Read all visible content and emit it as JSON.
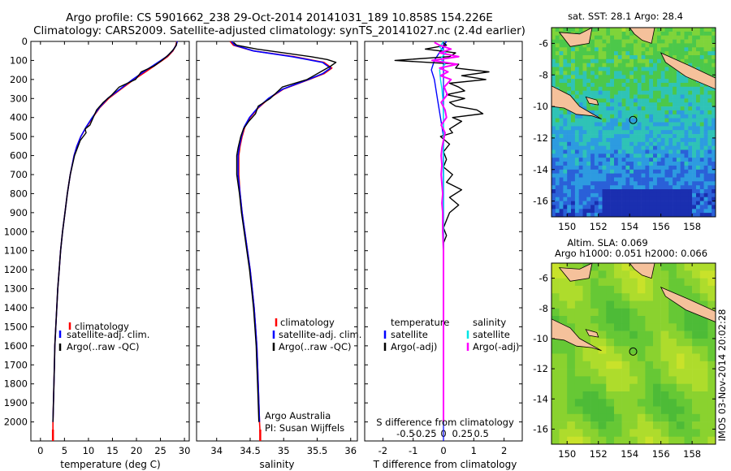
{
  "header": {
    "title_line1": "Argo profile: CS 5901662_238 29-Oct-2014 20141031_189 10.858S 154.226E",
    "title_line2": "Climatology: CARS2009. Satellite-adjusted climatology: synTS_20141027.nc (2.4d earlier)"
  },
  "colors": {
    "climatology": "#ff0000",
    "satellite": "#0000ff",
    "argo": "#000000",
    "sal_satellite": "#00e5e5",
    "sal_argo": "#ff00ff",
    "land": "#f5c19b"
  },
  "depth_axis": {
    "ylim": [
      0,
      2100
    ],
    "ticks": [
      0,
      100,
      200,
      300,
      400,
      500,
      600,
      700,
      800,
      900,
      1000,
      1100,
      1200,
      1300,
      1400,
      1500,
      1600,
      1700,
      1800,
      1900,
      2000
    ]
  },
  "panel_labels": {
    "temperature_xlabel": "temperature (deg C)",
    "salinity_xlabel": "salinity",
    "diff_xlabel": "T difference from climatology",
    "diff_sub_label": "S difference from climatology"
  },
  "legends": {
    "profile": [
      "climatology",
      "satellite-adj. clim.",
      "Argo(..raw -QC)"
    ],
    "diff_temp_header": "temperature",
    "diff_sal_header": "salinity",
    "diff_temp": [
      "satellite",
      "Argo(-adj)"
    ],
    "diff_sal": [
      "satellite",
      "Argo(-adj)"
    ]
  },
  "credits": {
    "line1": "Argo Australia",
    "line2": "PI: Susan Wijffels"
  },
  "maps": {
    "sst_title": "sat. SST: 28.1  Argo: 28.4",
    "sla_title1": "Altim. SLA: 0.069",
    "sla_title2": "Argo h1000: 0.051 h2000: 0.066",
    "xticks": [
      150,
      152,
      154,
      156,
      158
    ],
    "xlim": [
      149,
      159.5
    ],
    "sst_yticks": [
      -6,
      -8,
      -10,
      -12,
      -14,
      -16
    ],
    "sla_yticks": [
      -6,
      -8,
      -10,
      -12,
      -14,
      -16
    ],
    "ylim": [
      -17,
      -5
    ],
    "profile_location": {
      "lon": 154.226,
      "lat": -10.858
    }
  },
  "footer": {
    "stamp": "IMOS 03-Nov-2014 20:02:28"
  },
  "chart_data": [
    {
      "type": "line",
      "title": "temperature",
      "xlabel": "temperature (deg C)",
      "ylabel": "depth",
      "xlim": [
        -2,
        31
      ],
      "xticks": [
        0,
        5,
        10,
        15,
        20,
        25,
        30
      ],
      "ylim": [
        0,
        2100
      ],
      "series": [
        {
          "name": "climatology",
          "color": "#ff0000",
          "depth": [
            0,
            20,
            50,
            80,
            100,
            150,
            200,
            250,
            300,
            350,
            400,
            450,
            500,
            550,
            600,
            700,
            800,
            900,
            1000,
            1100,
            1200,
            1300,
            1400,
            1500,
            1600,
            1700,
            1800,
            1900,
            2000,
            2070
          ],
          "values": [
            28.4,
            28.2,
            27.6,
            26.5,
            25.4,
            22.5,
            19.5,
            16.8,
            14.2,
            12.3,
            10.9,
            9.6,
            8.4,
            7.6,
            7.0,
            6.2,
            5.6,
            5.1,
            4.6,
            4.2,
            3.9,
            3.6,
            3.4,
            3.2,
            3.0,
            2.9,
            2.8,
            2.7,
            2.6,
            2.6
          ]
        },
        {
          "name": "satellite-adj. clim.",
          "color": "#0000ff",
          "depth": [
            0,
            20,
            50,
            80,
            100,
            150,
            200,
            250,
            300,
            350,
            400,
            450,
            500,
            550,
            600,
            700,
            800,
            900,
            1000,
            1100,
            1200,
            1300,
            1400,
            1500,
            1600,
            1700,
            1800,
            1900,
            2000
          ],
          "values": [
            28.5,
            28.3,
            27.5,
            26.3,
            25.1,
            22.1,
            19.2,
            16.6,
            14.0,
            12.2,
            10.8,
            9.5,
            8.4,
            7.6,
            7.0,
            6.2,
            5.6,
            5.1,
            4.6,
            4.2,
            3.9,
            3.6,
            3.4,
            3.2,
            3.0,
            2.9,
            2.8,
            2.7,
            2.6
          ]
        },
        {
          "name": "Argo(..raw -QC)",
          "color": "#000000",
          "depth": [
            5,
            20,
            40,
            70,
            100,
            130,
            160,
            200,
            240,
            280,
            320,
            360,
            400,
            440,
            460,
            480,
            520,
            560,
            600,
            700,
            800,
            900,
            1000,
            1100,
            1200,
            1300,
            1400,
            1500,
            1600,
            1700,
            1800,
            1900,
            2000
          ],
          "values": [
            28.4,
            28.3,
            27.8,
            26.7,
            25.3,
            23.6,
            21.0,
            19.8,
            16.4,
            14.9,
            13.1,
            11.7,
            11.0,
            10.3,
            9.3,
            9.5,
            8.3,
            7.7,
            7.1,
            6.2,
            5.6,
            5.1,
            4.6,
            4.2,
            3.9,
            3.6,
            3.4,
            3.2,
            3.0,
            2.9,
            2.8,
            2.7,
            2.6
          ]
        }
      ]
    },
    {
      "type": "line",
      "title": "salinity",
      "xlabel": "salinity",
      "ylabel": "depth",
      "xlim": [
        33.7,
        36.1
      ],
      "xticks": [
        34,
        34.5,
        35,
        35.5,
        36
      ],
      "ylim": [
        0,
        2100
      ],
      "series": [
        {
          "name": "climatology",
          "color": "#ff0000",
          "depth": [
            0,
            20,
            50,
            80,
            110,
            140,
            170,
            200,
            250,
            300,
            350,
            400,
            450,
            500,
            550,
            600,
            700,
            800,
            900,
            1000,
            1100,
            1200,
            1300,
            1400,
            1500,
            1600,
            1700,
            1800,
            1900,
            2000,
            2070
          ],
          "values": [
            34.2,
            34.25,
            34.55,
            35.15,
            35.6,
            35.72,
            35.6,
            35.38,
            35.0,
            34.78,
            34.62,
            34.5,
            34.42,
            34.38,
            34.35,
            34.33,
            34.33,
            34.35,
            34.38,
            34.42,
            34.46,
            34.5,
            34.53,
            34.56,
            34.58,
            34.6,
            34.61,
            34.62,
            34.63,
            34.64,
            34.65
          ]
        },
        {
          "name": "satellite-adj. clim.",
          "color": "#0000ff",
          "depth": [
            0,
            20,
            50,
            80,
            110,
            140,
            170,
            200,
            250,
            300,
            350,
            400,
            450,
            500,
            550,
            600,
            700,
            800,
            900,
            1000,
            1100,
            1200,
            1300,
            1400,
            1500,
            1600,
            1700,
            1800,
            1900,
            2000
          ],
          "values": [
            34.22,
            34.27,
            34.55,
            35.12,
            35.58,
            35.7,
            35.58,
            35.37,
            34.99,
            34.77,
            34.61,
            34.49,
            34.41,
            34.37,
            34.34,
            34.32,
            34.32,
            34.35,
            34.38,
            34.42,
            34.46,
            34.5,
            34.53,
            34.56,
            34.58,
            34.6,
            34.61,
            34.62,
            34.63,
            34.64
          ]
        },
        {
          "name": "Argo(..raw -QC)",
          "color": "#000000",
          "depth": [
            5,
            20,
            40,
            60,
            80,
            95,
            110,
            130,
            160,
            200,
            240,
            300,
            340,
            380,
            420,
            460,
            500,
            560,
            600,
            700,
            800,
            900,
            1000,
            1100,
            1200,
            1300,
            1400,
            1500,
            1600,
            1700,
            1800,
            1900,
            2000
          ],
          "values": [
            34.25,
            34.3,
            34.6,
            35.0,
            35.4,
            35.65,
            35.78,
            35.7,
            35.55,
            35.35,
            34.98,
            34.8,
            34.62,
            34.58,
            34.48,
            34.4,
            34.36,
            34.32,
            34.3,
            34.3,
            34.34,
            34.37,
            34.41,
            34.45,
            34.49,
            34.52,
            34.55,
            34.57,
            34.59,
            34.6,
            34.61,
            34.62,
            34.63
          ]
        }
      ]
    },
    {
      "type": "line",
      "title": "difference from climatology",
      "xlabel": "T difference from climatology",
      "sub_xlabel": "S difference from climatology",
      "xlim": [
        -2.6,
        2.6
      ],
      "xticks": [
        -2,
        -1,
        0,
        1,
        2
      ],
      "s_xticks": [
        -0.5,
        -0.25,
        0,
        0.25,
        0.5
      ],
      "ylim": [
        0,
        2100
      ],
      "series": [
        {
          "name": "temperature satellite",
          "color": "#0000ff",
          "depth": [
            0,
            50,
            100,
            150,
            200,
            300,
            400,
            500,
            600,
            800,
            1000,
            1500,
            2000
          ],
          "values": [
            0.1,
            -0.1,
            -0.3,
            -0.4,
            -0.3,
            -0.2,
            -0.1,
            0.0,
            0.0,
            0.0,
            0.0,
            0.0,
            0.0
          ]
        },
        {
          "name": "temperature Argo(-adj)",
          "color": "#000000",
          "depth": [
            5,
            20,
            40,
            60,
            80,
            100,
            120,
            140,
            160,
            180,
            200,
            220,
            240,
            260,
            280,
            300,
            320,
            340,
            360,
            380,
            400,
            420,
            440,
            460,
            480,
            500,
            540,
            580,
            620,
            660,
            700,
            740,
            780,
            820,
            860,
            900,
            940,
            980,
            1020,
            1060,
            1100,
            1200,
            1300,
            1400,
            1500,
            1600,
            1700,
            1800,
            1900,
            2000
          ],
          "values": [
            0.0,
            0.1,
            -0.6,
            0.4,
            0.2,
            -1.6,
            0.5,
            0.4,
            1.5,
            0.6,
            1.4,
            0.2,
            0.5,
            0.7,
            0.1,
            0.7,
            0.2,
            0.4,
            1.1,
            1.3,
            0.3,
            0.6,
            0.4,
            0.2,
            0.3,
            -0.1,
            0.2,
            0.0,
            0.1,
            0.0,
            0.3,
            0.1,
            0.6,
            0.2,
            0.5,
            0.2,
            0.1,
            0.0,
            0.1,
            0.0,
            0.0,
            0.0,
            0.0,
            0.0,
            0.0,
            0.0,
            0.0,
            0.0,
            0.0,
            0.0
          ]
        },
        {
          "name": "salinity satellite",
          "color": "#00e5e5",
          "depth": [
            0,
            30,
            60,
            90,
            120,
            150,
            200,
            250,
            300,
            400,
            500,
            600,
            800,
            1000,
            1500,
            2000
          ],
          "values": [
            0.0,
            -0.05,
            0.03,
            -0.04,
            0.02,
            -0.05,
            -0.04,
            -0.02,
            -0.01,
            0.0,
            0.0,
            0.0,
            0.0,
            0.0,
            0.0,
            0.0
          ]
        },
        {
          "name": "salinity Argo(-adj)",
          "color": "#ff00ff",
          "depth": [
            5,
            20,
            40,
            60,
            80,
            100,
            120,
            140,
            160,
            180,
            200,
            240,
            280,
            320,
            360,
            400,
            440,
            480,
            520,
            560,
            600,
            650,
            700,
            750,
            800,
            850,
            900,
            950,
            1000,
            1100,
            1200,
            1300,
            1400,
            1500,
            1600,
            1700,
            1800,
            1900,
            2000
          ],
          "values": [
            -0.12,
            -0.05,
            0.1,
            -0.05,
            0.2,
            -0.15,
            0.18,
            -0.05,
            0.06,
            -0.04,
            0.1,
            0.01,
            0.05,
            -0.03,
            0.02,
            0.04,
            -0.03,
            0.02,
            0.0,
            -0.02,
            -0.03,
            -0.02,
            -0.03,
            -0.02,
            -0.01,
            -0.02,
            -0.01,
            -0.01,
            -0.01,
            0.0,
            0.0,
            0.0,
            0.0,
            0.0,
            0.0,
            0.0,
            0.0,
            0.0,
            0.0
          ]
        }
      ]
    }
  ]
}
